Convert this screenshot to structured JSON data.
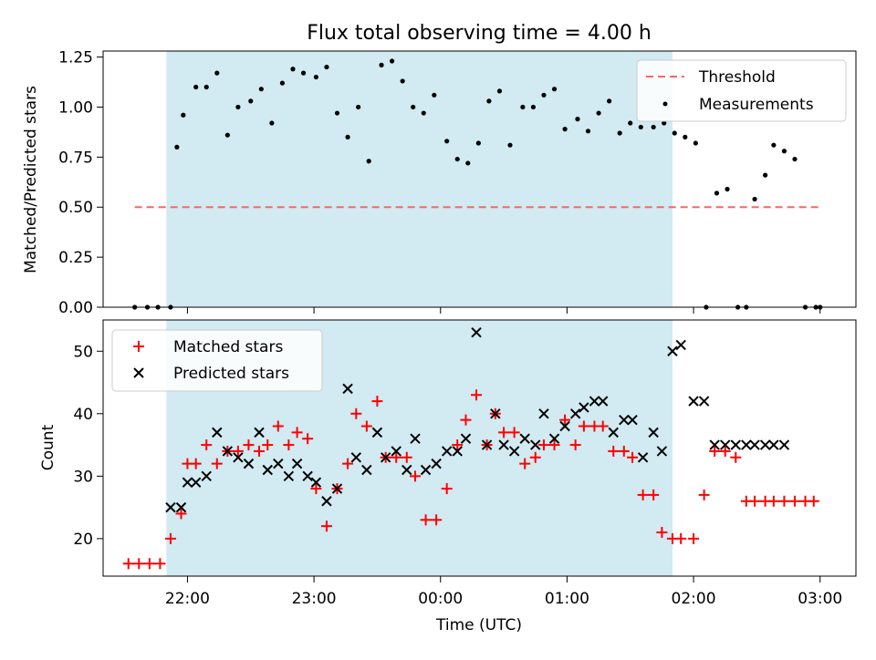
{
  "figure": {
    "title": "Flux total observing time = 4.00 h"
  },
  "colors": {
    "shade": "#add8e6",
    "threshold": "#ff6464",
    "measure": "#000000",
    "matched": "#ff0000",
    "predicted": "#000000"
  },
  "chart_data": [
    {
      "type": "scatter",
      "title": "Flux total observing time = 4.00 h",
      "xlabel": "",
      "ylabel": "Matched/Predicted stars",
      "ylim": [
        0,
        1.28
      ],
      "yticks": [
        0,
        0.25,
        0.5,
        0.75,
        1.0,
        1.25
      ],
      "ytick_labels": [
        "0.00",
        "0.25",
        "0.50",
        "0.75",
        "1.00",
        "1.25"
      ],
      "xlim": [
        "21:20",
        "03:17"
      ],
      "xticks": [
        "22:00",
        "23:00",
        "00:00",
        "01:00",
        "02:00",
        "03:00"
      ],
      "shaded_region": [
        "21:50",
        "01:50"
      ],
      "legend": "upper right",
      "threshold": {
        "name": "Threshold",
        "value": 0.5,
        "x": [
          "21:35",
          "03:00"
        ]
      },
      "series": [
        {
          "name": "Measurements",
          "x": [
            "21:35",
            "21:41",
            "21:46",
            "21:52",
            "21:55",
            "21:58",
            "22:04",
            "22:09",
            "22:14",
            "22:19",
            "22:24",
            "22:30",
            "22:35",
            "22:40",
            "22:45",
            "22:50",
            "22:55",
            "23:01",
            "23:06",
            "23:11",
            "23:16",
            "23:21",
            "23:26",
            "23:32",
            "23:37",
            "23:42",
            "23:47",
            "23:52",
            "23:57",
            "00:03",
            "00:08",
            "00:13",
            "00:18",
            "00:23",
            "00:28",
            "00:33",
            "00:39",
            "00:44",
            "00:49",
            "00:54",
            "00:59",
            "01:05",
            "01:10",
            "01:15",
            "01:20",
            "01:25",
            "01:30",
            "01:35",
            "01:41",
            "01:46",
            "01:51",
            "01:56",
            "02:01",
            "02:06",
            "02:11",
            "02:16",
            "02:21",
            "02:25",
            "02:29",
            "02:34",
            "02:38",
            "02:43",
            "02:48",
            "02:53",
            "02:58",
            "03:00"
          ],
          "y": [
            0.0,
            0.0,
            0.0,
            0.0,
            0.8,
            0.96,
            1.1,
            1.1,
            1.17,
            0.86,
            1.0,
            1.03,
            1.09,
            0.92,
            1.12,
            1.19,
            1.17,
            1.15,
            1.2,
            0.97,
            0.85,
            1.0,
            0.73,
            1.21,
            1.23,
            1.13,
            1.0,
            0.97,
            1.06,
            0.83,
            0.74,
            0.72,
            0.82,
            1.03,
            1.08,
            0.81,
            1.0,
            1.0,
            1.06,
            1.09,
            0.89,
            0.94,
            0.88,
            0.97,
            1.03,
            0.87,
            0.92,
            0.9,
            0.9,
            0.92,
            0.87,
            0.85,
            0.82,
            0.0,
            0.57,
            0.59,
            0.0,
            0.0,
            0.54,
            0.66,
            0.81,
            0.78,
            0.74,
            0.0,
            0.0,
            0.0
          ]
        }
      ]
    },
    {
      "type": "scatter",
      "title": "",
      "xlabel": "Time (UTC)",
      "ylabel": "Count",
      "ylim": [
        14,
        55
      ],
      "yticks": [
        20,
        30,
        40,
        50
      ],
      "xlim": [
        "21:20",
        "03:17"
      ],
      "xticks": [
        "22:00",
        "23:00",
        "00:00",
        "01:00",
        "02:00",
        "03:00"
      ],
      "shaded_region": [
        "21:50",
        "01:50"
      ],
      "legend": "upper left",
      "series": [
        {
          "name": "Matched stars",
          "marker": "+",
          "x": [
            "21:32",
            "21:37",
            "21:42",
            "21:47",
            "21:52",
            "21:57",
            "22:00",
            "22:04",
            "22:09",
            "22:14",
            "22:19",
            "22:24",
            "22:29",
            "22:34",
            "22:38",
            "22:43",
            "22:48",
            "22:52",
            "22:57",
            "23:01",
            "23:06",
            "23:11",
            "23:16",
            "23:20",
            "23:25",
            "23:30",
            "23:34",
            "23:39",
            "23:44",
            "23:48",
            "23:53",
            "23:58",
            "00:03",
            "00:08",
            "00:12",
            "00:17",
            "00:22",
            "00:26",
            "00:30",
            "00:35",
            "00:40",
            "00:45",
            "00:49",
            "00:54",
            "00:59",
            "01:04",
            "01:08",
            "01:13",
            "01:17",
            "01:22",
            "01:27",
            "01:31",
            "01:36",
            "01:41",
            "01:45",
            "01:50",
            "01:54",
            "02:00",
            "02:05",
            "02:10",
            "02:15",
            "02:20",
            "02:25",
            "02:29",
            "02:34",
            "02:38",
            "02:43",
            "02:48",
            "02:53",
            "02:57"
          ],
          "y": [
            16,
            16,
            16,
            16,
            20,
            24,
            32,
            32,
            35,
            32,
            34,
            34,
            35,
            34,
            35,
            38,
            35,
            37,
            36,
            28,
            22,
            28,
            32,
            40,
            38,
            42,
            33,
            33,
            33,
            30,
            23,
            23,
            28,
            35,
            39,
            43,
            35,
            40,
            37,
            37,
            32,
            33,
            35,
            35,
            39,
            35,
            38,
            38,
            38,
            34,
            34,
            33,
            27,
            27,
            21,
            20,
            20,
            20,
            27,
            34,
            34,
            33,
            26,
            26,
            26,
            26,
            26,
            26,
            26,
            26
          ]
        },
        {
          "name": "Predicted stars",
          "marker": "x",
          "x": [
            "21:52",
            "21:57",
            "22:00",
            "22:04",
            "22:09",
            "22:14",
            "22:19",
            "22:24",
            "22:29",
            "22:34",
            "22:38",
            "22:43",
            "22:48",
            "22:52",
            "22:57",
            "23:01",
            "23:06",
            "23:11",
            "23:16",
            "23:20",
            "23:25",
            "23:30",
            "23:34",
            "23:39",
            "23:44",
            "23:48",
            "23:53",
            "23:58",
            "00:03",
            "00:08",
            "00:12",
            "00:17",
            "00:22",
            "00:26",
            "00:30",
            "00:35",
            "00:40",
            "00:45",
            "00:49",
            "00:54",
            "00:59",
            "01:04",
            "01:08",
            "01:13",
            "01:17",
            "01:22",
            "01:27",
            "01:31",
            "01:36",
            "01:41",
            "01:45",
            "01:50",
            "01:54",
            "02:00",
            "02:05",
            "02:10",
            "02:15",
            "02:20",
            "02:25",
            "02:29",
            "02:34",
            "02:38",
            "02:43"
          ],
          "y": [
            25,
            25,
            29,
            29,
            30,
            37,
            34,
            33,
            32,
            37,
            31,
            32,
            30,
            32,
            30,
            29,
            26,
            28,
            44,
            33,
            31,
            37,
            33,
            34,
            31,
            36,
            31,
            32,
            34,
            34,
            36,
            53,
            35,
            40,
            35,
            34,
            36,
            35,
            40,
            36,
            38,
            40,
            41,
            42,
            42,
            37,
            39,
            39,
            33,
            37,
            34,
            50,
            51,
            42,
            42,
            35,
            35,
            35,
            35,
            35,
            35,
            35,
            35
          ]
        }
      ]
    }
  ]
}
